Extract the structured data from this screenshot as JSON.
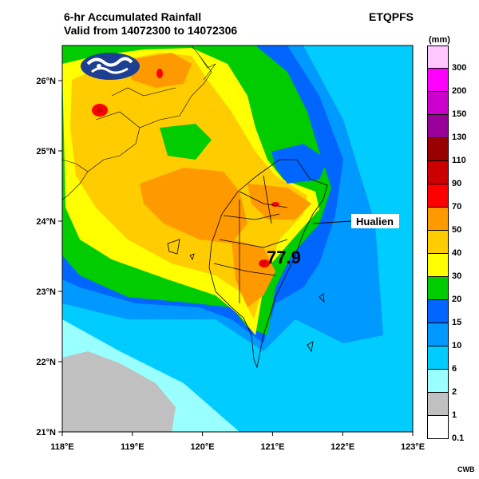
{
  "header": {
    "title_line1": "6-hr Accumulated Rainfall",
    "title_line2": "Valid from 14072300 to 14072306",
    "product": "ETQPFS"
  },
  "map": {
    "lon_ticks": [
      "118°E",
      "119°E",
      "120°E",
      "121°E",
      "122°E",
      "123°E"
    ],
    "lat_ticks": [
      "21°N",
      "22°N",
      "23°N",
      "24°N",
      "25°N",
      "26°N"
    ],
    "annotation_place": "Hualien",
    "max_value": "77.9",
    "logo": "CWB agency emblem"
  },
  "legend": {
    "unit": "(mm)",
    "bins": [
      {
        "label": "300",
        "color": "#ffc6ff"
      },
      {
        "label": "200",
        "color": "#ff00ff"
      },
      {
        "label": "150",
        "color": "#cc00cc"
      },
      {
        "label": "130",
        "color": "#990099"
      },
      {
        "label": "110",
        "color": "#990000"
      },
      {
        "label": "90",
        "color": "#cc0000"
      },
      {
        "label": "70",
        "color": "#ff0000"
      },
      {
        "label": "50",
        "color": "#ff9900"
      },
      {
        "label": "40",
        "color": "#ffcc00"
      },
      {
        "label": "30",
        "color": "#ffff00"
      },
      {
        "label": "20",
        "color": "#00cc00"
      },
      {
        "label": "15",
        "color": "#0066ff"
      },
      {
        "label": "10",
        "color": "#0099ff"
      },
      {
        "label": "6",
        "color": "#00ccff"
      },
      {
        "label": "2",
        "color": "#99ffff"
      },
      {
        "label": "1",
        "color": "#c0c0c0"
      },
      {
        "label": "0.1",
        "color": "#ffffff"
      }
    ]
  },
  "footer": {
    "credit": "CWB"
  }
}
